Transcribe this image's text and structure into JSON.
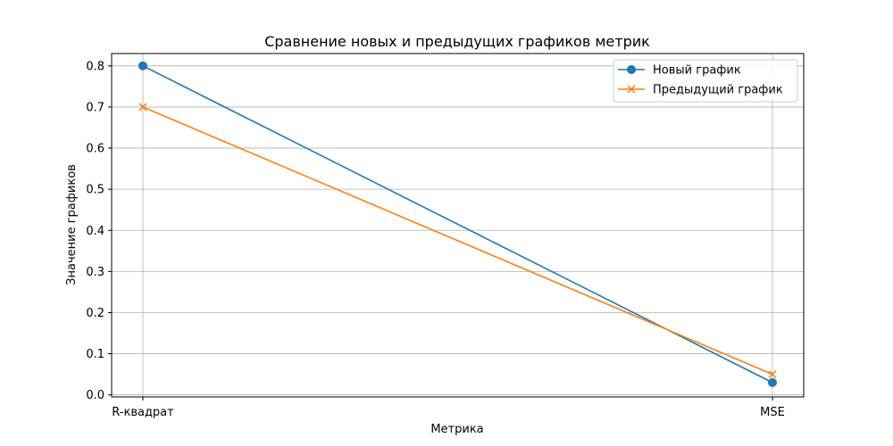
{
  "chart_data": {
    "type": "line",
    "title": "Сравнение новых и предыдущих графиков метрик",
    "xlabel": "Метрика",
    "ylabel": "Значение графиков",
    "categories": [
      "R-квадрат",
      "MSE"
    ],
    "ylim": [
      -0.005,
      0.83
    ],
    "yticks": [
      0.0,
      0.1,
      0.2,
      0.3,
      0.4,
      0.5,
      0.6,
      0.7,
      0.8
    ],
    "ytick_labels": [
      "0.0",
      "0.1",
      "0.2",
      "0.3",
      "0.4",
      "0.5",
      "0.6",
      "0.7",
      "0.8"
    ],
    "grid": true,
    "legend_position": "top-right",
    "series": [
      {
        "name": "Новый график",
        "values": [
          0.8,
          0.03
        ],
        "color": "#1f77b4",
        "marker": "circle"
      },
      {
        "name": "Предыдущий график",
        "values": [
          0.7,
          0.05
        ],
        "color": "#ff7f0e",
        "marker": "x"
      }
    ]
  }
}
